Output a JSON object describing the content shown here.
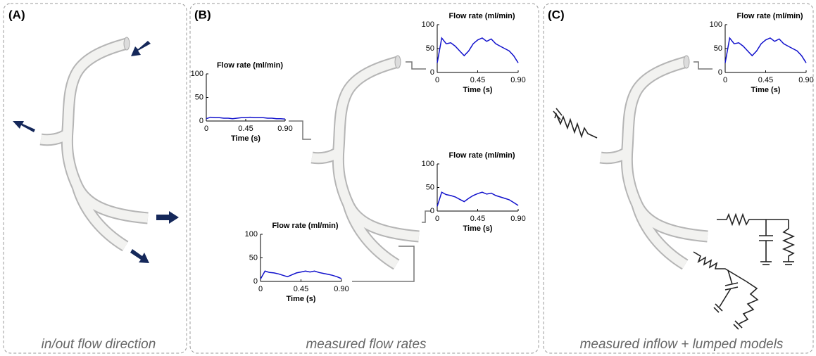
{
  "panels": [
    {
      "label": "(A)",
      "caption": "in/out flow direction"
    },
    {
      "label": "(B)",
      "caption": "measured flow rates"
    },
    {
      "label": "(C)",
      "caption": "measured inflow + lumped models"
    }
  ],
  "chart_data": [
    {
      "type": "line",
      "title": "Flow rate (ml/min)",
      "xlabel": "Time (s)",
      "color": "#1010cc",
      "x": [
        0,
        0.05,
        0.1,
        0.15,
        0.2,
        0.25,
        0.3,
        0.35,
        0.4,
        0.45,
        0.5,
        0.55,
        0.6,
        0.65,
        0.7,
        0.75,
        0.8,
        0.85,
        0.9
      ],
      "values": [
        5,
        8,
        7,
        7,
        6,
        6,
        5,
        6,
        7,
        7,
        8,
        7,
        7,
        7,
        6,
        6,
        5,
        5,
        4
      ],
      "xlim": [
        0,
        0.9
      ],
      "ylim": [
        0,
        100
      ],
      "xticks": [
        0,
        0.45,
        {
          "value": 0.9,
          "label": "0.90"
        }
      ],
      "yticks": [
        0,
        50,
        100
      ]
    },
    {
      "type": "line",
      "title": "Flow rate (ml/min)",
      "xlabel": "Time (s)",
      "color": "#1010cc",
      "x": [
        0,
        0.05,
        0.1,
        0.15,
        0.2,
        0.25,
        0.3,
        0.35,
        0.4,
        0.45,
        0.5,
        0.55,
        0.6,
        0.65,
        0.7,
        0.75,
        0.8,
        0.85,
        0.9
      ],
      "values": [
        20,
        72,
        60,
        62,
        55,
        45,
        35,
        45,
        60,
        68,
        72,
        65,
        70,
        60,
        55,
        50,
        45,
        35,
        20
      ],
      "xlim": [
        0,
        0.9
      ],
      "ylim": [
        0,
        100
      ],
      "xticks": [
        0,
        0.45,
        {
          "value": 0.9,
          "label": "0.90"
        }
      ],
      "yticks": [
        0,
        50,
        100
      ]
    },
    {
      "type": "line",
      "title": "Flow rate (ml/min)",
      "xlabel": "Time (s)",
      "color": "#1010cc",
      "x": [
        0,
        0.05,
        0.1,
        0.15,
        0.2,
        0.25,
        0.3,
        0.35,
        0.4,
        0.45,
        0.5,
        0.55,
        0.6,
        0.65,
        0.7,
        0.75,
        0.8,
        0.85,
        0.9
      ],
      "values": [
        10,
        40,
        35,
        33,
        30,
        25,
        20,
        27,
        33,
        37,
        40,
        36,
        38,
        33,
        30,
        27,
        24,
        18,
        12
      ],
      "xlim": [
        0,
        0.9
      ],
      "ylim": [
        0,
        100
      ],
      "xticks": [
        0,
        0.45,
        {
          "value": 0.9,
          "label": "0.90"
        }
      ],
      "yticks": [
        0,
        50,
        100
      ]
    },
    {
      "type": "line",
      "title": "Flow rate (ml/min)",
      "xlabel": "Time (s)",
      "color": "#1010cc",
      "x": [
        0,
        0.05,
        0.1,
        0.15,
        0.2,
        0.25,
        0.3,
        0.35,
        0.4,
        0.45,
        0.5,
        0.55,
        0.6,
        0.65,
        0.7,
        0.75,
        0.8,
        0.85,
        0.9
      ],
      "values": [
        5,
        22,
        19,
        18,
        16,
        13,
        10,
        14,
        18,
        20,
        22,
        20,
        22,
        19,
        17,
        15,
        13,
        10,
        6
      ],
      "xlim": [
        0,
        0.9
      ],
      "ylim": [
        0,
        100
      ],
      "xticks": [
        0,
        0.45,
        {
          "value": 0.9,
          "label": "0.90"
        }
      ],
      "yticks": [
        0,
        50,
        100
      ]
    },
    {
      "type": "line",
      "title": "Flow rate (ml/min)",
      "xlabel": "Time (s)",
      "color": "#1010cc",
      "x": [
        0,
        0.05,
        0.1,
        0.15,
        0.2,
        0.25,
        0.3,
        0.35,
        0.4,
        0.45,
        0.5,
        0.55,
        0.6,
        0.65,
        0.7,
        0.75,
        0.8,
        0.85,
        0.9
      ],
      "values": [
        20,
        72,
        60,
        62,
        55,
        45,
        35,
        45,
        60,
        68,
        72,
        65,
        70,
        60,
        55,
        50,
        45,
        35,
        20
      ],
      "xlim": [
        0,
        0.9
      ],
      "ylim": [
        0,
        100
      ],
      "xticks": [
        0,
        0.45,
        {
          "value": 0.9,
          "label": "0.90"
        }
      ],
      "yticks": [
        0,
        50,
        100
      ]
    }
  ]
}
